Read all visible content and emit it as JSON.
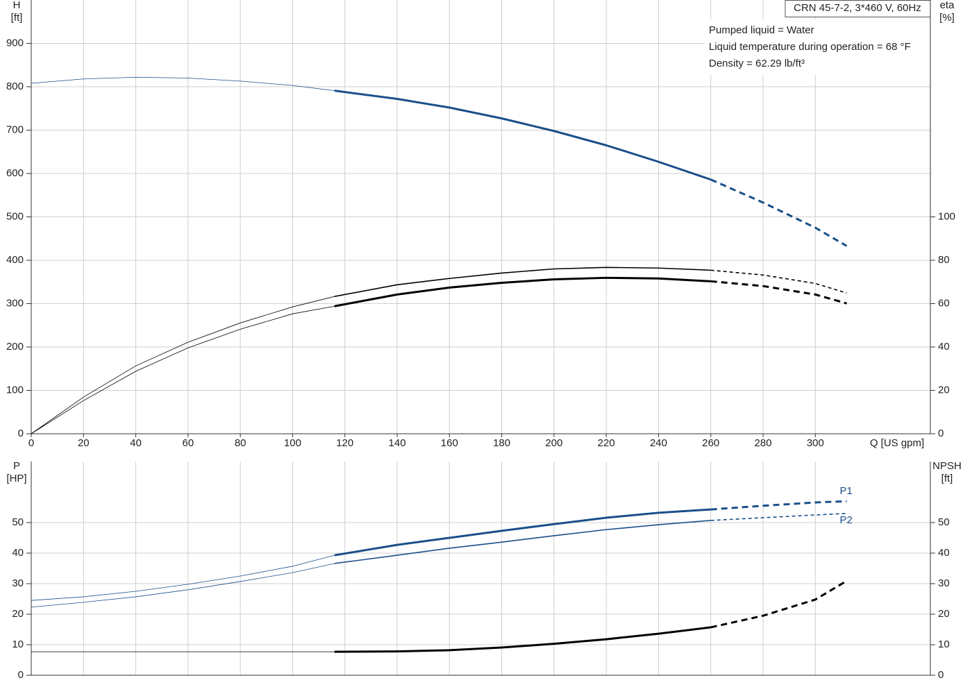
{
  "chart_data": [
    {
      "type": "line",
      "title": "CRN 45-7-2, 3*460 V, 60Hz",
      "annotations": [
        "Pumped liquid = Water",
        "Liquid temperature during operation = 68 °F",
        "Density = 62.29 lb/ft³"
      ],
      "y_label": "H",
      "y_unit": "[ft]",
      "y2_label": "eta",
      "y2_unit": "[%]",
      "x_label": "Q [US gpm]",
      "xlim": [
        0,
        344
      ],
      "ylim": [
        0,
        1000
      ],
      "y2lim": [
        0,
        200
      ],
      "xticks": [
        0,
        20,
        40,
        60,
        80,
        100,
        120,
        140,
        160,
        180,
        200,
        220,
        240,
        260,
        280,
        300
      ],
      "yticks": [
        0,
        100,
        200,
        300,
        400,
        500,
        600,
        700,
        800,
        900
      ],
      "y2ticks": [
        0,
        20,
        40,
        60,
        80,
        100
      ],
      "grid": true,
      "series": [
        {
          "color": "#1a4f8a",
          "style": "thin",
          "x": [
            0,
            20,
            40,
            60,
            80,
            100,
            116
          ],
          "values": [
            808,
            818,
            822,
            820,
            813,
            803,
            791
          ]
        },
        {
          "color": "#1a4f8a",
          "style": "bold",
          "x": [
            116,
            140,
            160,
            180,
            200,
            220,
            240,
            260
          ],
          "values": [
            791,
            772,
            752,
            727,
            698,
            665,
            627,
            586
          ]
        },
        {
          "color": "#1a4f8a",
          "style": "bold-dash",
          "x": [
            260,
            280,
            300,
            312
          ],
          "values": [
            586,
            533,
            475,
            433
          ]
        },
        {
          "color": "#000000",
          "style": "thin",
          "axis": "y2",
          "x": [
            0,
            20,
            40,
            60,
            80,
            100,
            116
          ],
          "values": [
            0,
            16.9,
            31.3,
            42.2,
            51.1,
            58.5,
            63.3
          ]
        },
        {
          "color": "#000000",
          "style": "normal",
          "axis": "y2",
          "x": [
            116,
            140,
            160,
            180,
            200,
            220,
            240,
            260
          ],
          "values": [
            63.3,
            68.7,
            71.6,
            74.1,
            76.0,
            76.7,
            76.4,
            75.4
          ]
        },
        {
          "color": "#000000",
          "style": "dash",
          "axis": "y2",
          "x": [
            260,
            280,
            300,
            312
          ],
          "values": [
            75.4,
            73.2,
            69.3,
            64.9
          ]
        },
        {
          "color": "#000000",
          "style": "thin",
          "axis": "y2",
          "x": [
            0,
            20,
            40,
            60,
            80,
            100,
            116
          ],
          "values": [
            0,
            15.3,
            28.8,
            39.6,
            48.2,
            55.3,
            58.8
          ]
        },
        {
          "color": "#000000",
          "style": "bold",
          "axis": "y2",
          "x": [
            116,
            140,
            160,
            180,
            200,
            220,
            240,
            260
          ],
          "values": [
            58.8,
            64.2,
            67.4,
            69.6,
            71.2,
            71.9,
            71.6,
            70.3
          ]
        },
        {
          "color": "#000000",
          "style": "bold-dash",
          "axis": "y2",
          "x": [
            260,
            280,
            300,
            312
          ],
          "values": [
            70.3,
            68.1,
            64.2,
            60.1
          ]
        }
      ]
    },
    {
      "type": "line",
      "y_label": "P",
      "y_unit": "[HP]",
      "y2_label": "NPSH",
      "y2_unit": "[ft]",
      "xlim": [
        0,
        344
      ],
      "ylim": [
        0,
        70
      ],
      "y2lim": [
        0,
        70
      ],
      "yticks": [
        0,
        10,
        20,
        30,
        40,
        50
      ],
      "y2ticks": [
        0,
        10,
        20,
        30,
        40,
        50
      ],
      "grid": true,
      "series": [
        {
          "color": "#1a4f8a",
          "style": "thin",
          "x": [
            0,
            20,
            40,
            60,
            80,
            100,
            116
          ],
          "values": [
            24.5,
            25.7,
            27.5,
            29.8,
            32.5,
            35.7,
            39.3
          ]
        },
        {
          "color": "#1a4f8a",
          "style": "bold",
          "x": [
            116,
            140,
            160,
            180,
            200,
            220,
            240,
            260
          ],
          "values": [
            39.3,
            42.7,
            45.0,
            47.3,
            49.5,
            51.6,
            53.2,
            54.3
          ]
        },
        {
          "name": "P1",
          "label_position": "above",
          "color": "#1a4f8a",
          "style": "bold-dash",
          "x": [
            260,
            280,
            300,
            312
          ],
          "values": [
            54.3,
            55.5,
            56.6,
            57.0
          ]
        },
        {
          "color": "#1a4f8a",
          "style": "thin",
          "x": [
            0,
            20,
            40,
            60,
            80,
            100,
            116
          ],
          "values": [
            22.3,
            23.9,
            25.7,
            28.0,
            30.7,
            33.6,
            36.6
          ]
        },
        {
          "color": "#1a4f8a",
          "style": "normal",
          "x": [
            116,
            140,
            160,
            180,
            200,
            220,
            240,
            260
          ],
          "values": [
            36.6,
            39.3,
            41.6,
            43.6,
            45.7,
            47.7,
            49.3,
            50.7
          ]
        },
        {
          "name": "P2",
          "label_position": "below",
          "color": "#1a4f8a",
          "style": "dash",
          "x": [
            260,
            280,
            300,
            312
          ],
          "values": [
            50.7,
            51.6,
            52.5,
            53.0
          ]
        },
        {
          "color": "#000000",
          "style": "thin",
          "axis": "y2",
          "x": [
            0,
            116
          ],
          "values": [
            7.7,
            7.7
          ]
        },
        {
          "color": "#000000",
          "style": "bold",
          "axis": "y2",
          "x": [
            116,
            140,
            160,
            180,
            200,
            220,
            240,
            260
          ],
          "values": [
            7.7,
            7.8,
            8.2,
            9.1,
            10.3,
            11.8,
            13.6,
            15.7
          ]
        },
        {
          "color": "#000000",
          "style": "bold-dash",
          "axis": "y2",
          "x": [
            260,
            280,
            300,
            312
          ],
          "values": [
            15.7,
            19.5,
            24.8,
            30.9
          ]
        }
      ]
    }
  ]
}
